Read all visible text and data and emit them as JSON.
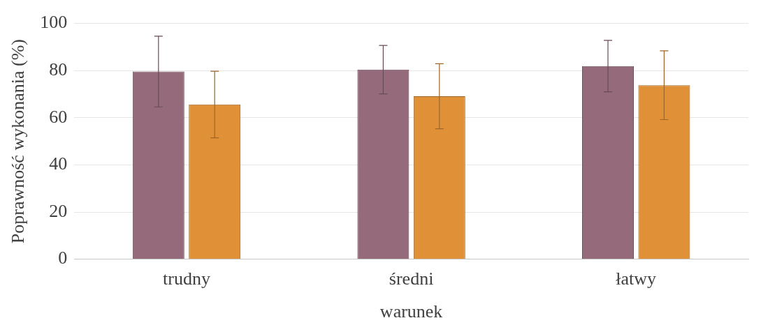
{
  "chart_data": {
    "type": "bar",
    "xlabel": "warunek",
    "ylabel": "Poprawność wykonania (%)",
    "categories": [
      "trudny",
      "średni",
      "łatwy"
    ],
    "series": [
      {
        "color": "#956b7b",
        "values": [
          79.6,
          80.4,
          81.9
        ],
        "errors": [
          15,
          10.3,
          10.9
        ]
      },
      {
        "color": "#e09138",
        "values": [
          65.6,
          69.1,
          73.8
        ],
        "errors": [
          14.1,
          13.8,
          14.6
        ]
      }
    ],
    "ylim": [
      0,
      100
    ],
    "yticks": [
      0,
      20,
      40,
      60,
      80,
      100
    ],
    "grid": "y"
  }
}
